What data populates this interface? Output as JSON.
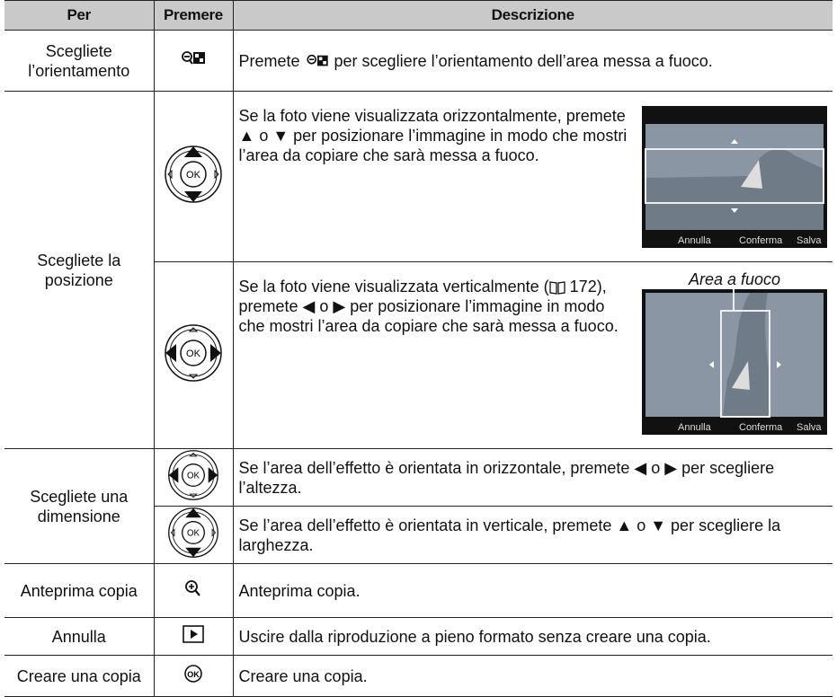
{
  "table": {
    "header": [
      "Per",
      "Premere",
      "Descrizione"
    ],
    "rows": [
      {
        "per": "Scegliete l’orientamento",
        "descrizione": [
          "Premete ",
          " per scegliere l’orientamento dell’area messa a fuoco."
        ]
      },
      {
        "per": "Scegliete la posizione",
        "descrizione": [
          "Se la foto viene visualizzata orizzontalmente, premete ▲ o ▼ per posizionare l’immagine in modo che mostri l’area da copiare che sarà messa a fuoco."
        ]
      },
      {
        "descrizione": [
          "Se la foto viene visualizzata verticalmente (",
          " 172), premete ◀ o ▶ per posizionare l’immagine in modo che mostri l’area da copiare che sarà messa a fuoco."
        ]
      },
      {
        "per": "Scegliete una dimensione",
        "descrizione": [
          "Se l’area dell’effetto è orientata in orizzontale, premete ◀ o ▶ per scegliere l’altezza."
        ]
      },
      {
        "descrizione": [
          "Se l’area dell’effetto è orientata in verticale, premete ▲ o ▼ per scegliere la larghezza."
        ]
      },
      {
        "per": "Anteprima copia",
        "descrizione": [
          "Anteprima copia."
        ]
      },
      {
        "per": "Annulla",
        "descrizione": [
          "Uscire dalla riproduzione a pieno formato senza creare una copia."
        ]
      },
      {
        "per": "Creare una copia",
        "descrizione": [
          "Creare una copia."
        ]
      }
    ]
  },
  "figure": {
    "caption": "Area a fuoco",
    "screen_labels": [
      "Annulla",
      "Conferma",
      "Salva"
    ]
  },
  "button_label": "OK"
}
